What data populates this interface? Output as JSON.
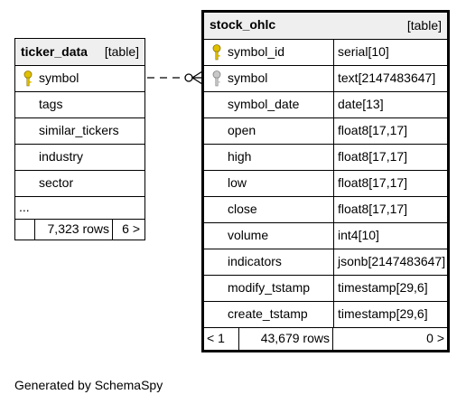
{
  "tables": {
    "ticker_data": {
      "name": "ticker_data",
      "kind": "[table]",
      "columns": [
        "symbol",
        "tags",
        "similar_tickers",
        "industry",
        "sector",
        "..."
      ],
      "footer": {
        "left": "",
        "rows": "7,323 rows",
        "right": "6 >"
      }
    },
    "stock_ohlc": {
      "name": "stock_ohlc",
      "kind": "[table]",
      "columns": [
        {
          "name": "symbol_id",
          "type": "serial[10]"
        },
        {
          "name": "symbol",
          "type": "text[2147483647]"
        },
        {
          "name": "symbol_date",
          "type": "date[13]"
        },
        {
          "name": "open",
          "type": "float8[17,17]"
        },
        {
          "name": "high",
          "type": "float8[17,17]"
        },
        {
          "name": "low",
          "type": "float8[17,17]"
        },
        {
          "name": "close",
          "type": "float8[17,17]"
        },
        {
          "name": "volume",
          "type": "int4[10]"
        },
        {
          "name": "indicators",
          "type": "jsonb[2147483647]"
        },
        {
          "name": "modify_tstamp",
          "type": "timestamp[29,6]"
        },
        {
          "name": "create_tstamp",
          "type": "timestamp[29,6]"
        }
      ],
      "footer": {
        "left": "< 1",
        "rows": "43,679 rows",
        "right": "0 >"
      }
    }
  },
  "icons": {
    "primary_key": "key-icon-gold",
    "foreign_key": "key-icon-gray"
  },
  "colors": {
    "header_bg": "#efefef",
    "primary_key": "#e0c000",
    "foreign_key": "#a0a0a0"
  },
  "caption": "Generated by SchemaSpy"
}
